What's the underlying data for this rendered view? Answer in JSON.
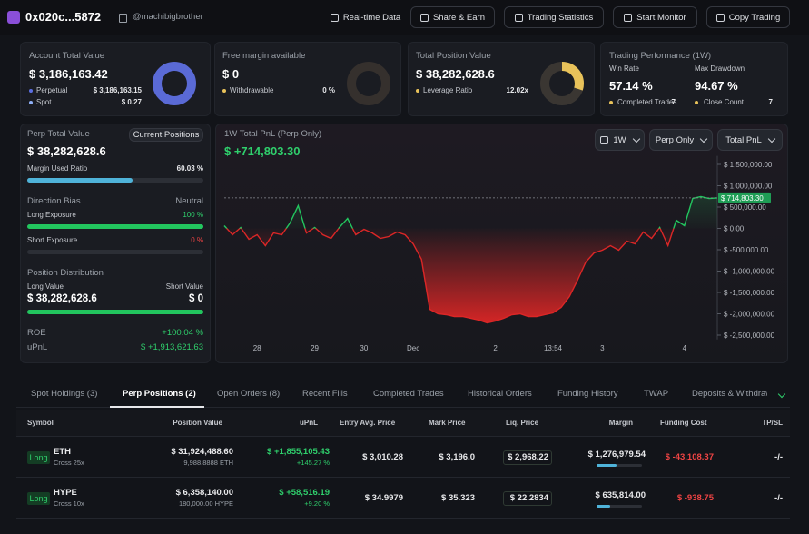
{
  "header": {
    "address": "0x020c...5872",
    "handle": "@machibigbrother",
    "buttons": [
      "Real-time Data",
      "Share & Earn",
      "Trading Statistics",
      "Start Monitor",
      "Copy Trading"
    ]
  },
  "cards": [
    {
      "title": "Account Total Value",
      "value": "$ 3,186,163.42",
      "rows": [
        {
          "label": "Perpetual",
          "value": "$ 3,186,163.15"
        },
        {
          "label": "Spot",
          "value": "$ 0.27"
        }
      ]
    },
    {
      "title": "Free margin available",
      "value": "$ 0",
      "rows": [
        {
          "label": "Withdrawable",
          "value": "0 %"
        }
      ]
    },
    {
      "title": "Total Position Value",
      "value": "$ 38,282,628.6",
      "rows": [
        {
          "label": "Leverage Ratio",
          "value": "12.02x"
        }
      ]
    },
    {
      "title": "Trading Performance (1W)",
      "stats": [
        {
          "label": "Win Rate",
          "value": "57.14 %"
        },
        {
          "label": "Max Drawdown",
          "value": "94.67 %"
        }
      ],
      "rows": [
        {
          "label": "Completed Trades",
          "value": "7"
        },
        {
          "label": "Close Count",
          "value": "7"
        }
      ]
    }
  ],
  "perp": {
    "title": "Perp Total Value",
    "button": "Current Positions",
    "value": "$ 38,282,628.6",
    "margin": {
      "label": "Margin Used Ratio",
      "value": 60.03,
      "value_label": "60.03 %"
    },
    "bias": {
      "label": "Direction Bias",
      "value": "Neutral"
    },
    "long": {
      "label": "Long Exposure",
      "value": 100,
      "value_label": "100 %"
    },
    "short": {
      "label": "Short Exposure",
      "value": 0,
      "value_label": "0 %"
    },
    "distribution": {
      "title": "Position Distribution",
      "long_label": "Long Value",
      "short_label": "Short Value",
      "long_value": "$ 38,282,628.6",
      "short_value": "$ 0"
    },
    "roe": {
      "label": "ROE",
      "value": "+100.04 %"
    },
    "upnl": {
      "label": "uPnL",
      "value": "$ +1,913,621.63"
    }
  },
  "chart_data": {
    "type": "line",
    "title": "1W Total PnL (Perp Only)",
    "total": "$ +714,803.30",
    "controls": [
      "1W",
      "Perp Only",
      "Total PnL"
    ],
    "categories": [
      null,
      null,
      null,
      null,
      "28",
      null,
      null,
      null,
      null,
      null,
      null,
      "29",
      null,
      null,
      null,
      null,
      null,
      "30",
      null,
      null,
      null,
      null,
      null,
      "Dec",
      null,
      null,
      null,
      null,
      null,
      null,
      null,
      null,
      null,
      "2",
      null,
      null,
      null,
      null,
      null,
      null,
      "13:54",
      null,
      null,
      null,
      null,
      null,
      "3",
      null,
      null,
      null,
      null,
      null,
      null,
      null,
      null,
      null,
      "4",
      null,
      null,
      null,
      null
    ],
    "values": [
      64000,
      -149000,
      21000,
      -255000,
      -149000,
      -404000,
      -106000,
      -149000,
      128000,
      532000,
      -106000,
      21000,
      -149000,
      -234000,
      21000,
      234000,
      -149000,
      -21000,
      -106000,
      -234000,
      -191000,
      -85000,
      -149000,
      -362000,
      -723000,
      -1894000,
      -2000000,
      -2021000,
      -2064000,
      -2064000,
      -2106000,
      -2149000,
      -2213000,
      -2170000,
      -2106000,
      -2021000,
      -2000000,
      -2064000,
      -2064000,
      -2021000,
      -1979000,
      -1851000,
      -1596000,
      -1213000,
      -787000,
      -574000,
      -511000,
      -404000,
      -511000,
      -298000,
      -362000,
      -85000,
      -234000,
      21000,
      -404000,
      191000,
      64000,
      702000,
      745000,
      702000,
      714803.3
    ],
    "color_up": "#22c55e",
    "color_down": "#dc2626",
    "ylim": [
      -2600000,
      1700000
    ],
    "yticks": [
      {
        "value": 1500000,
        "label": "$ 1,500,000.00"
      },
      {
        "value": 1000000,
        "label": "$ 1,000,000.00"
      },
      {
        "value": 500000,
        "label": "$ 500,000.00"
      },
      {
        "value": 0,
        "label": "$ 0.00"
      },
      {
        "value": -500000,
        "label": "$ -500,000.00"
      },
      {
        "value": -1000000,
        "label": "$ -1,000,000.00"
      },
      {
        "value": -1500000,
        "label": "$ -1,500,000.00"
      },
      {
        "value": -2000000,
        "label": "$ -2,000,000.00"
      },
      {
        "value": -2500000,
        "label": "$ -2,500,000.00"
      }
    ],
    "current_label": "$ 714,803.30"
  },
  "tabs": {
    "items": [
      "Spot Holdings (3)",
      "Perp Positions (2)",
      "Open Orders (8)",
      "Recent Fills",
      "Completed Trades",
      "Historical Orders",
      "Funding History",
      "TWAP",
      "Deposits & Withdraw"
    ],
    "active": 1
  },
  "table": {
    "columns": [
      "Symbol",
      "Position Value",
      "uPnL",
      "Entry Avg. Price",
      "Mark Price",
      "Liq. Price",
      "Margin",
      "Funding Cost",
      "TP/SL"
    ],
    "rows": [
      {
        "side": "Long",
        "symbol": "ETH",
        "margin_mode": "Cross 25x",
        "position_value": "$ 31,924,488.60",
        "size": "9,988.8888 ETH",
        "upnl": "$ +1,855,105.43",
        "upnl_pct": "+145.27 %",
        "entry": "$ 3,010.28",
        "mark": "$ 3,196.0",
        "liq": "$ 2,968.22",
        "margin": "$ 1,276,979.54",
        "funding": "$ -43,108.37",
        "tpsl": "-/-"
      },
      {
        "side": "Long",
        "symbol": "HYPE",
        "margin_mode": "Cross 10x",
        "position_value": "$ 6,358,140.00",
        "size": "180,000.00 HYPE",
        "upnl": "$ +58,516.19",
        "upnl_pct": "+9.20 %",
        "entry": "$ 34.9979",
        "mark": "$ 35.323",
        "liq": "$ 22.2834",
        "margin": "$ 635,814.00",
        "funding": "$ -938.75",
        "tpsl": "-/-"
      }
    ]
  }
}
